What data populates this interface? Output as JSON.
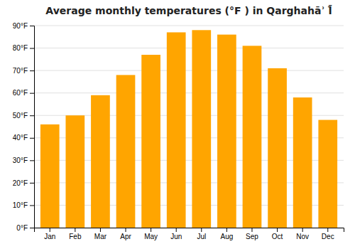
{
  "chart_data": {
    "type": "bar",
    "title": "Average monthly temperatures (°F ) in Qarghahāʾ Ī̄",
    "categories": [
      "Jan",
      "Feb",
      "Mar",
      "Apr",
      "May",
      "Jun",
      "Jul",
      "Aug",
      "Sep",
      "Oct",
      "Nov",
      "Dec"
    ],
    "values": [
      46,
      50,
      59,
      68,
      77,
      87,
      88,
      86,
      81,
      71,
      58,
      48
    ],
    "color": "#FFA500",
    "ylim": [
      0,
      90
    ],
    "yticks": [
      {
        "value": 0,
        "label": "0°F"
      },
      {
        "value": 10,
        "label": "10°F"
      },
      {
        "value": 20,
        "label": "20°F"
      },
      {
        "value": 30,
        "label": "30°F"
      },
      {
        "value": 40,
        "label": "40°F"
      },
      {
        "value": 50,
        "label": "50°F"
      },
      {
        "value": 60,
        "label": "60°F"
      },
      {
        "value": 70,
        "label": "70°F"
      },
      {
        "value": 80,
        "label": "80°F"
      },
      {
        "value": 90,
        "label": "90°F"
      }
    ],
    "grid": true
  }
}
